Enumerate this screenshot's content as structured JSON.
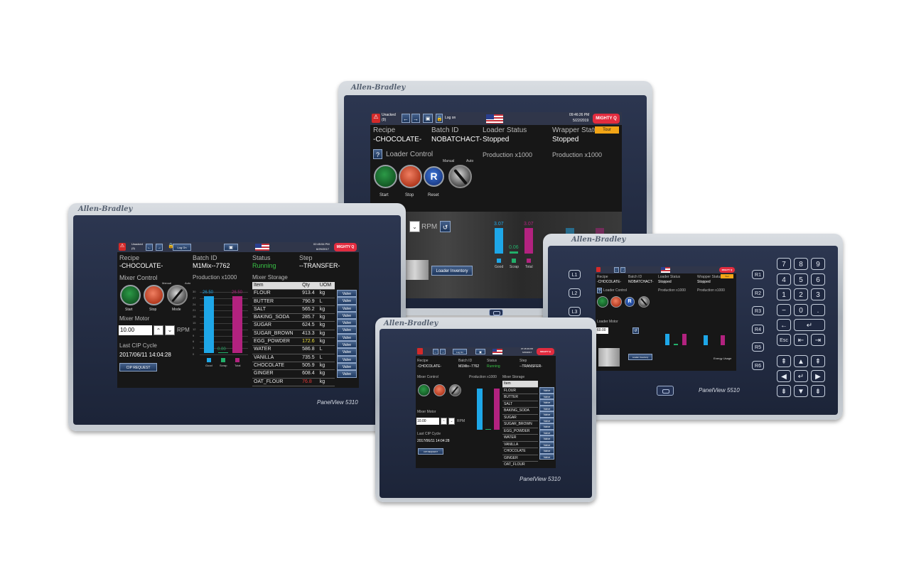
{
  "brand": "Allen-Bradley",
  "models": {
    "small": "PanelView 5310",
    "keypad": "PanelView 5510"
  },
  "topbar": {
    "unacked": "Unacked",
    "unacked_count": "(9)",
    "log_on": "Log On",
    "log_on_alt": "Log on",
    "time_left": "02:45:54 PM",
    "date_left": "6/29/2017",
    "time_top": "09:46:26 PM",
    "date_top": "5/22/2019",
    "time_mid": "07:45:36 PM",
    "date_mid": "6/29/2017",
    "logo": "MIGHTY Q"
  },
  "header": {
    "recipe_label": "Recipe",
    "recipe_value": "-CHOCOLATE-",
    "batch_label": "Batch ID",
    "batch_value": "M1Mix--7762",
    "batch_value_alt": "NOBATCHACT-",
    "status_label": "Status",
    "status_value": "Running",
    "step_label": "Step",
    "step_value": "--TRANSFER-",
    "loader_status_label": "Loader Status",
    "loader_status_value": "Stopped",
    "wrapper_status_label": "Wrapper Status",
    "wrapper_status_value": "Stopped",
    "tour": "Tour"
  },
  "mixer": {
    "control_title": "Mixer Control",
    "loader_control_title": "Loader Control",
    "start": "Start",
    "stop": "Stop",
    "mode": "Mode",
    "reset": "Reset",
    "reset_glyph": "R",
    "manual": "Manual",
    "auto": "Auto",
    "motor_title": "Mixer Motor",
    "loader_motor_title": "Loader Motor",
    "motor_value": "10.00",
    "loader_motor_value": "60.00",
    "rpm": "RPM",
    "cip_title": "Last CIP Cycle",
    "cip_value": "2017/06/11 14:04:28",
    "cip_button": "CIP REQUEST",
    "loader_inventory": "Loader Inventory",
    "energy_usage": "Energy Usage",
    "help_glyph": "?"
  },
  "production": {
    "title": "Production x1000",
    "yticks": [
      "30",
      "27",
      "24",
      "21",
      "18",
      "15",
      "12",
      "9",
      "6",
      "3",
      "0"
    ],
    "good_label": "26.50",
    "total_label": "26.50",
    "scrap_label": "0.00",
    "top_good_label": "3.07",
    "top_total_label": "3.07",
    "top_scrap_label": "0.06",
    "legend": [
      "Good",
      "Scrap",
      "Total"
    ]
  },
  "storage": {
    "title": "Mixer Storage",
    "columns": [
      "Item",
      "Qty",
      "UOM"
    ],
    "valve_label": "Valve",
    "rows": [
      {
        "item": "FLOUR",
        "qty": "913.4",
        "uom": "kg",
        "hl": ""
      },
      {
        "item": "BUTTER",
        "qty": "790.9",
        "uom": "L",
        "hl": ""
      },
      {
        "item": "SALT",
        "qty": "565.2",
        "uom": "kg",
        "hl": ""
      },
      {
        "item": "BAKING_SODA",
        "qty": "285.7",
        "uom": "kg",
        "hl": ""
      },
      {
        "item": "SUGAR",
        "qty": "624.5",
        "uom": "kg",
        "hl": ""
      },
      {
        "item": "SUGAR_BROWN",
        "qty": "413.3",
        "uom": "kg",
        "hl": ""
      },
      {
        "item": "EGG_POWDER",
        "qty": "172.6",
        "uom": "kg",
        "hl": "y"
      },
      {
        "item": "WATER",
        "qty": "586.8",
        "uom": "L",
        "hl": ""
      },
      {
        "item": "VANILLA",
        "qty": "735.5",
        "uom": "L",
        "hl": ""
      },
      {
        "item": "CHOCOLATE",
        "qty": "505.9",
        "uom": "kg",
        "hl": ""
      },
      {
        "item": "GINGER",
        "qty": "608.4",
        "uom": "kg",
        "hl": ""
      },
      {
        "item": "OAT_FLOUR",
        "qty": "76.8",
        "uom": "kg",
        "hl": "r"
      }
    ]
  },
  "keypad": {
    "left": [
      "L1",
      "L2",
      "L3"
    ],
    "right": [
      "R1",
      "R2",
      "R3",
      "R4",
      "R5",
      "R6"
    ],
    "digits": [
      "7",
      "8",
      "9",
      "4",
      "5",
      "6",
      "1",
      "2",
      "3",
      "−",
      "0",
      "."
    ],
    "esc": "Esc"
  },
  "colors": {
    "good": "#1ea7e8",
    "scrap": "#22b06a",
    "total": "#b2227f",
    "running": "#38c446"
  }
}
